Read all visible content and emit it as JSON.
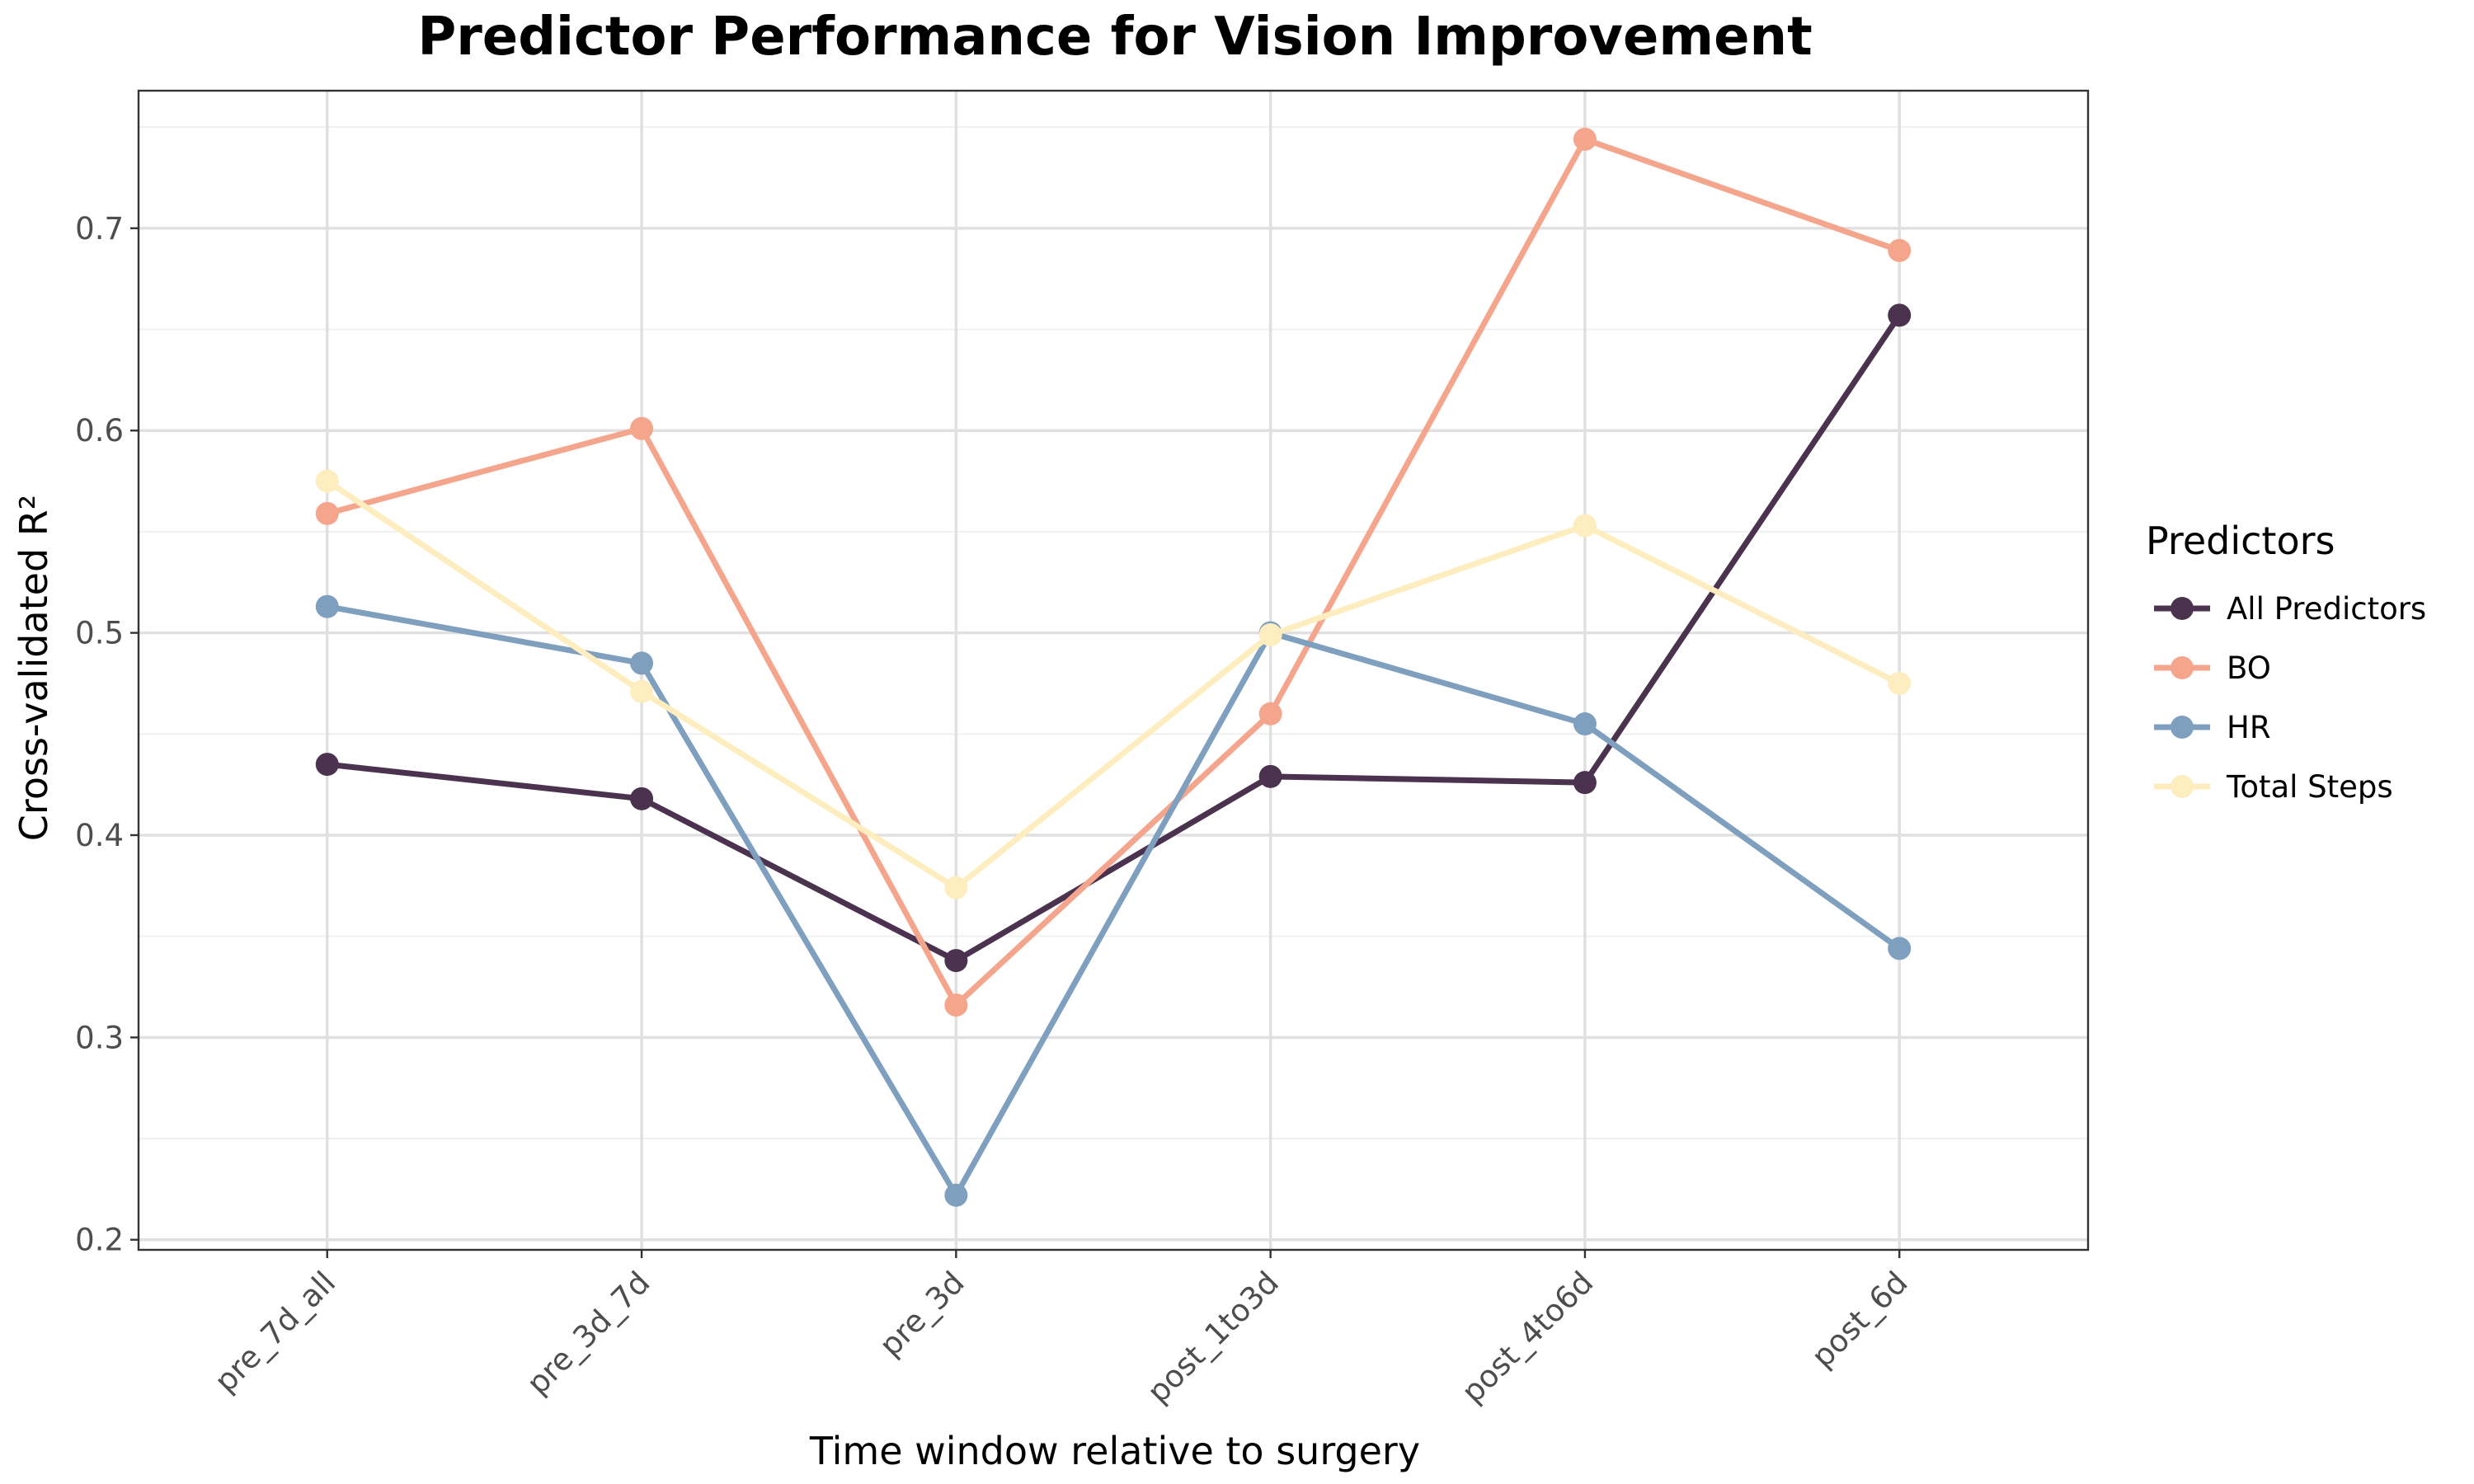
{
  "chart_data": {
    "type": "line",
    "title": "Predictor Performance for Vision Improvement",
    "xlabel": "Time window relative to surgery",
    "ylabel": "Cross-validated R²",
    "categories": [
      "pre_7d_all",
      "pre_3d_7d",
      "pre_3d",
      "post_1to3d",
      "post_4to6d",
      "post_6d"
    ],
    "ylim": [
      0.195,
      0.768
    ],
    "yticks": [
      0.2,
      0.3,
      0.4,
      0.5,
      0.6,
      0.7
    ],
    "ytick_labels": [
      "0.2",
      "0.3",
      "0.4",
      "0.5",
      "0.6",
      "0.7"
    ],
    "grid": true,
    "legend": {
      "title": "Predictors",
      "position": "right"
    },
    "series": [
      {
        "name": "All Predictors",
        "color": "#4b3350",
        "values": [
          0.435,
          0.418,
          0.338,
          0.429,
          0.426,
          0.657
        ]
      },
      {
        "name": "BO",
        "color": "#f4a58c",
        "values": [
          0.559,
          0.601,
          0.316,
          0.46,
          0.744,
          0.689
        ]
      },
      {
        "name": "HR",
        "color": "#7f9fbf",
        "values": [
          0.513,
          0.485,
          0.222,
          0.5,
          0.455,
          0.344
        ]
      },
      {
        "name": "Total Steps",
        "color": "#fdedbf",
        "values": [
          0.575,
          0.471,
          0.374,
          0.499,
          0.553,
          0.475
        ]
      }
    ]
  }
}
